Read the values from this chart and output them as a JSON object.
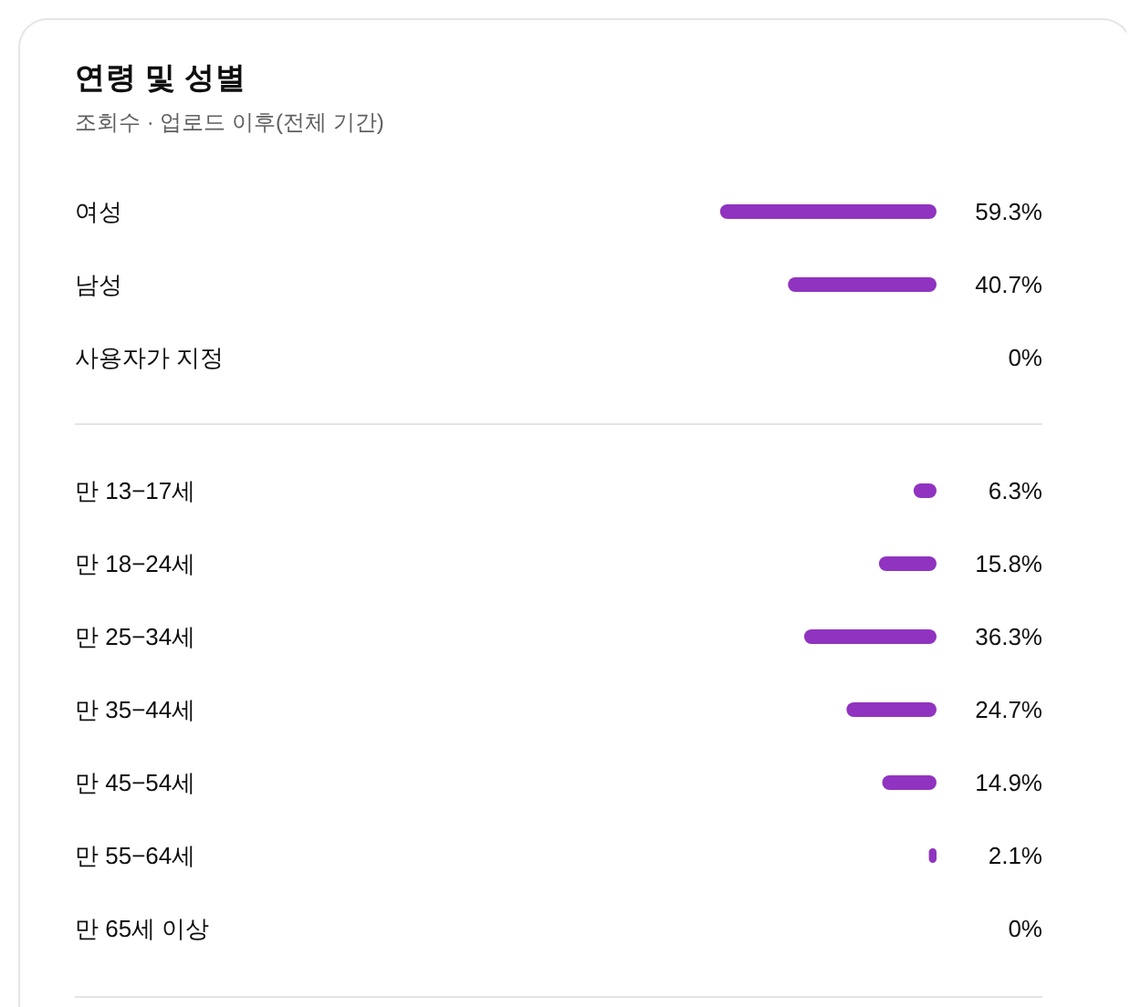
{
  "chart_data": [
    {
      "type": "bar",
      "orientation": "horizontal",
      "title": "연령 및 성별",
      "subtitle": "조회수 · 업로드 이후(전체 기간)",
      "categories": [
        "여성",
        "남성",
        "사용자가 지정"
      ],
      "values": [
        59.3,
        40.7,
        0
      ],
      "value_labels": [
        "59.3%",
        "40.7%",
        "0%"
      ],
      "color": "#9033c0"
    },
    {
      "type": "bar",
      "orientation": "horizontal",
      "categories": [
        "만 13−17세",
        "만 18−24세",
        "만 25−34세",
        "만 35−44세",
        "만 45−54세",
        "만 55−64세",
        "만 65세 이상"
      ],
      "values": [
        6.3,
        15.8,
        36.3,
        24.7,
        14.9,
        2.1,
        0
      ],
      "value_labels": [
        "6.3%",
        "15.8%",
        "36.3%",
        "24.7%",
        "14.9%",
        "2.1%",
        "0%"
      ],
      "color": "#9033c0"
    }
  ]
}
